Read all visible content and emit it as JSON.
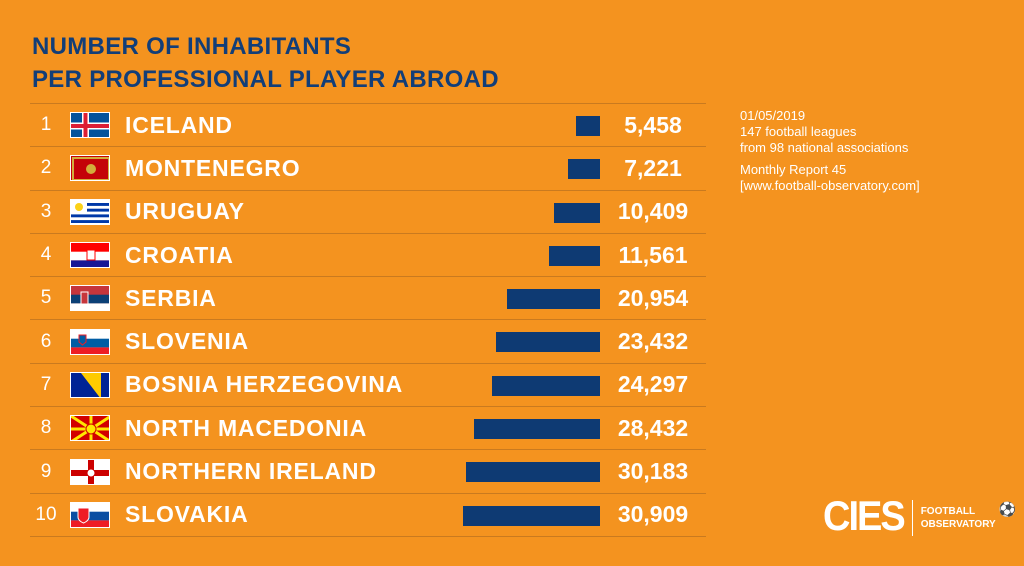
{
  "title": [
    "NUMBER OF INHABITANTS",
    "PER PROFESSIONAL PLAYER ABROAD"
  ],
  "notes": [
    "01/05/2019",
    "147 football leagues",
    "from 98 national associations",
    "Monthly Report 45",
    "[www.football-observatory.com]"
  ],
  "logo": {
    "brand": "CIES",
    "line1": "FOOTBALL",
    "line2": "OBSERVATORY"
  },
  "colors": {
    "background": "#F4931F",
    "bar": "#0E3A73"
  },
  "chart_data": {
    "type": "bar",
    "title": "NUMBER OF INHABITANTS PER PROFESSIONAL PLAYER ABROAD",
    "categories": [
      "ICELAND",
      "MONTENEGRO",
      "URUGUAY",
      "CROATIA",
      "SERBIA",
      "SLOVENIA",
      "BOSNIA HERZEGOVINA",
      "NORTH MACEDONIA",
      "NORTHERN IRELAND",
      "SLOVAKIA"
    ],
    "ranks": [
      "1",
      "2",
      "3",
      "4",
      "5",
      "6",
      "7",
      "8",
      "9",
      "10"
    ],
    "values": [
      5458,
      7221,
      10409,
      11561,
      20954,
      23432,
      24297,
      28432,
      30183,
      30909
    ],
    "labels": [
      "5,458",
      "7,221",
      "10,409",
      "11,561",
      "20,954",
      "23,432",
      "24,297",
      "28,432",
      "30,183",
      "30,909"
    ],
    "flags": [
      "iceland-flag",
      "montenegro-flag",
      "uruguay-flag",
      "croatia-flag",
      "serbia-flag",
      "slovenia-flag",
      "bosnia-flag",
      "north-macedonia-flag",
      "northern-ireland-flag",
      "slovakia-flag"
    ],
    "xlim": [
      0,
      31000
    ]
  }
}
